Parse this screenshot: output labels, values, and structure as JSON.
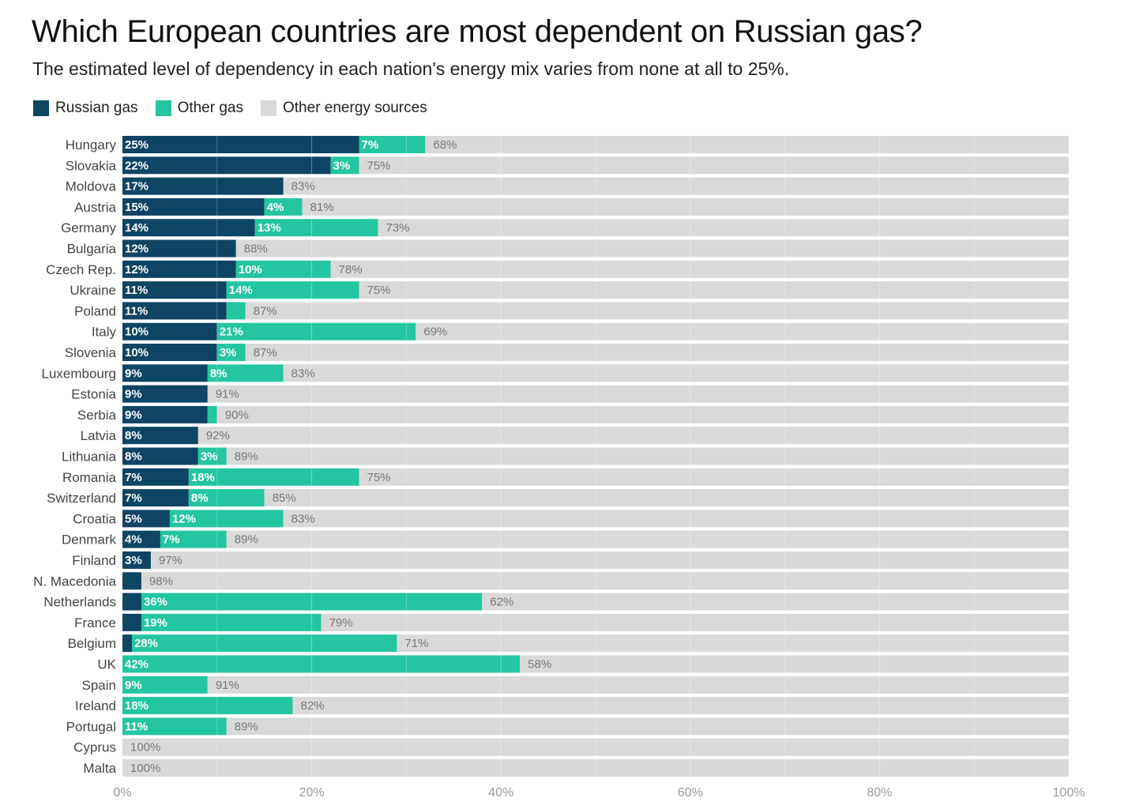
{
  "title": "Which European countries are most dependent on Russian gas?",
  "subtitle": "The estimated level of dependency in each nation's energy mix varies from none at all to 25%.",
  "colors": {
    "russian_gas": "#0e4563",
    "other_gas": "#24c6a1",
    "other_energy": "#d9d9d9",
    "label_dark": "#ffffff",
    "label_outside": "#777777",
    "country_label": "#444444",
    "tick": "#999999"
  },
  "legend": [
    {
      "label": "Russian gas",
      "color": "#0e4563"
    },
    {
      "label": "Other gas",
      "color": "#24c6a1"
    },
    {
      "label": "Other energy sources",
      "color": "#d9d9d9"
    }
  ],
  "chart_data": {
    "type": "bar",
    "orientation": "horizontal",
    "stacked": true,
    "title": "Which European countries are most dependent on Russian gas?",
    "subtitle": "The estimated level of dependency in each nation's energy mix varies from none at all to 25%.",
    "xlim": [
      0,
      100
    ],
    "x_ticks": [
      "0%",
      "20%",
      "40%",
      "60%",
      "80%",
      "100%"
    ],
    "x_tick_values": [
      0,
      20,
      40,
      60,
      80,
      100
    ],
    "categories": [
      "Hungary",
      "Slovakia",
      "Moldova",
      "Austria",
      "Germany",
      "Bulgaria",
      "Czech Rep.",
      "Ukraine",
      "Poland",
      "Italy",
      "Slovenia",
      "Luxembourg",
      "Estonia",
      "Serbia",
      "Latvia",
      "Lithuania",
      "Romania",
      "Switzerland",
      "Croatia",
      "Denmark",
      "Finland",
      "N. Macedonia",
      "Netherlands",
      "France",
      "Belgium",
      "UK",
      "Spain",
      "Ireland",
      "Portugal",
      "Cyprus",
      "Malta"
    ],
    "series": [
      {
        "name": "Russian gas",
        "values": [
          25,
          22,
          17,
          15,
          14,
          12,
          12,
          11,
          11,
          10,
          10,
          9,
          9,
          9,
          8,
          8,
          7,
          7,
          5,
          4,
          3,
          2,
          2,
          2,
          1,
          0,
          0,
          0,
          0,
          0,
          0
        ],
        "labels": [
          "25%",
          "22%",
          "17%",
          "15%",
          "14%",
          "12%",
          "12%",
          "11%",
          "11%",
          "10%",
          "10%",
          "9%",
          "9%",
          "9%",
          "8%",
          "8%",
          "7%",
          "7%",
          "5%",
          "4%",
          "3%",
          "",
          "",
          "",
          "",
          "",
          "",
          "",
          "",
          "",
          ""
        ]
      },
      {
        "name": "Other gas",
        "values": [
          7,
          3,
          0,
          4,
          13,
          0,
          10,
          14,
          2,
          21,
          3,
          8,
          0,
          1,
          0,
          3,
          18,
          8,
          12,
          7,
          0,
          0,
          36,
          19,
          28,
          42,
          9,
          18,
          11,
          0,
          0
        ],
        "labels": [
          "7%",
          "3%",
          "",
          "4%",
          "13%",
          "",
          "10%",
          "14%",
          "",
          "21%",
          "3%",
          "8%",
          "",
          "",
          "",
          "3%",
          "18%",
          "8%",
          "12%",
          "7%",
          "",
          "",
          "36%",
          "19%",
          "28%",
          "42%",
          "9%",
          "18%",
          "11%",
          "",
          ""
        ]
      },
      {
        "name": "Other energy sources",
        "values": [
          68,
          75,
          83,
          81,
          73,
          88,
          78,
          75,
          87,
          69,
          87,
          83,
          91,
          90,
          92,
          89,
          75,
          85,
          83,
          89,
          97,
          98,
          62,
          79,
          71,
          58,
          91,
          82,
          89,
          100,
          100
        ],
        "labels": [
          "68%",
          "75%",
          "83%",
          "81%",
          "73%",
          "88%",
          "78%",
          "75%",
          "87%",
          "69%",
          "87%",
          "83%",
          "91%",
          "90%",
          "92%",
          "89%",
          "75%",
          "85%",
          "83%",
          "89%",
          "97%",
          "98%",
          "62%",
          "79%",
          "71%",
          "58%",
          "91%",
          "82%",
          "89%",
          "100%",
          "100%"
        ]
      }
    ]
  }
}
